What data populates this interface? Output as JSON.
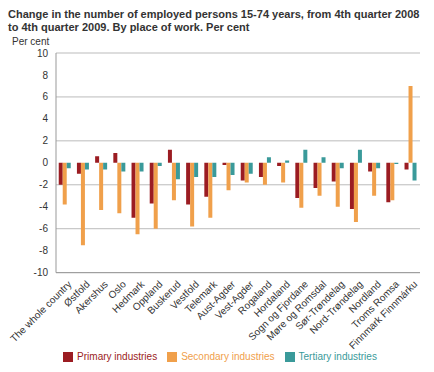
{
  "chart_data": {
    "type": "bar",
    "title": "Change in the number of employed persons 15-74 years, from 4th quarter 2008 to 4th quarter 2009. By place of work. Per cent",
    "y_label": "Per cent",
    "categories": [
      "The whole country",
      "Østfold",
      "Akershus",
      "Oslo",
      "Hedmark",
      "Oppland",
      "Buskerud",
      "Vestfold",
      "Telemark",
      "Aust-Agder",
      "Vest-Agder",
      "Rogaland",
      "Hordaland",
      "Sogn og Fjordane",
      "Møre og Romsdal",
      "Sør-Trøndelag",
      "Nord-Trøndelag",
      "Nordland",
      "Troms Romsa",
      "Finnmark Finnmárku"
    ],
    "series": [
      {
        "name": "Primary industries",
        "color": "#9b1c22",
        "values": [
          -2.0,
          -1.0,
          0.6,
          0.9,
          -5.0,
          -3.7,
          1.2,
          -3.8,
          -3.1,
          -0.2,
          -1.6,
          -1.3,
          -0.3,
          -3.2,
          -2.3,
          -1.7,
          -4.2,
          -0.8,
          -3.6,
          -0.6
        ]
      },
      {
        "name": "Secondary industries",
        "color": "#f0a04b",
        "values": [
          -3.8,
          -7.5,
          -4.3,
          -4.6,
          -6.5,
          -6.0,
          -3.4,
          -5.8,
          -5.0,
          -2.5,
          -1.8,
          -2.0,
          -1.8,
          -4.1,
          -3.0,
          -4.0,
          -5.4,
          -3.0,
          -3.4,
          7.0
        ]
      },
      {
        "name": "Tertiary industries",
        "color": "#3a9a9a",
        "values": [
          -0.5,
          -0.6,
          -0.6,
          -0.8,
          -0.8,
          -0.3,
          -1.5,
          -1.3,
          -1.3,
          -1.1,
          -1.0,
          0.5,
          0.2,
          1.2,
          0.5,
          -0.5,
          1.2,
          -0.5,
          -0.1,
          -1.6
        ]
      }
    ],
    "ylim": [
      -10,
      10
    ],
    "yticks": [
      -10,
      -8,
      -6,
      -4,
      -2,
      0,
      2,
      4,
      6,
      8,
      10
    ],
    "grid": true,
    "legend": "bottom"
  }
}
